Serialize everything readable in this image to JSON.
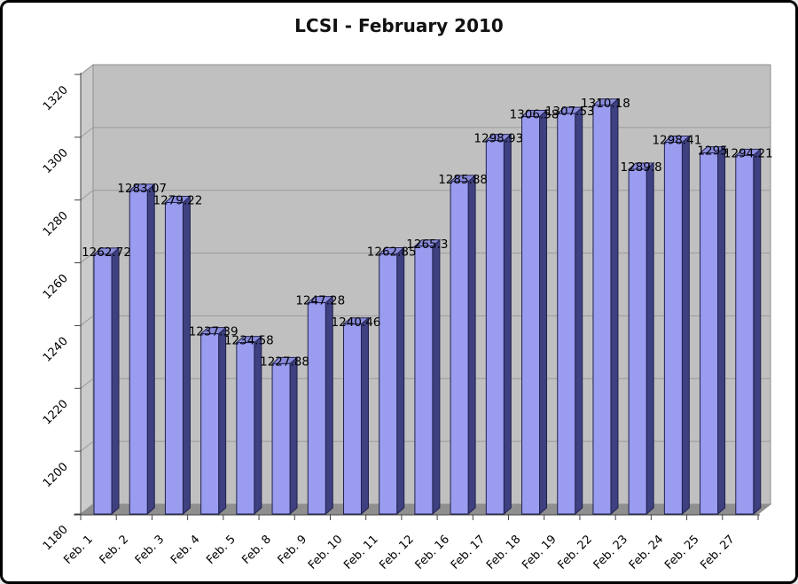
{
  "frame": {
    "background": "#ffffff",
    "border_color": "#000000"
  },
  "chart_data": {
    "type": "bar",
    "style": "3d-column-excel",
    "title": "LCSI - February 2010",
    "xlabel": "",
    "ylabel": "",
    "categories": [
      "Feb. 1",
      "Feb. 2",
      "Feb. 3",
      "Feb. 4",
      "Feb. 5",
      "Feb. 8",
      "Feb. 9",
      "Feb. 10",
      "Feb. 11",
      "Feb. 12",
      "Feb. 16",
      "Feb. 17",
      "Feb. 18",
      "Feb. 19",
      "Feb. 22",
      "Feb. 23",
      "Feb. 24",
      "Feb. 25",
      "Feb. 27"
    ],
    "values": [
      1262.72,
      1283.07,
      1279.22,
      1237.39,
      1234.58,
      1227.88,
      1247.28,
      1240.46,
      1262.85,
      1265.3,
      1285.88,
      1298.93,
      1306.58,
      1307.53,
      1310.18,
      1289.8,
      1298.41,
      1295,
      1294.21
    ],
    "value_labels": [
      "1262.72",
      "1283.07",
      "1279.22",
      "1237.39",
      "1234.58",
      "1227.88",
      "1247.28",
      "1240.46",
      "1262.85",
      "1265.3",
      "1285.88",
      "1298.93",
      "1306.58",
      "1307.53",
      "1310.18",
      "1289.8",
      "1298.41",
      "1295",
      "1294.21"
    ],
    "ylim": [
      1180,
      1320
    ],
    "ytick_interval": 20,
    "ytick_labels": [
      "1180",
      "1200",
      "1220",
      "1240",
      "1260",
      "1280",
      "1300",
      "1320"
    ],
    "grid": true,
    "legend": "none",
    "colors": {
      "bar_face": "#9a9cf0",
      "bar_side": "#3e4080",
      "bar_top": "#8a8cdc",
      "bar_edge": "#20214e",
      "wall": "#c0c0c0",
      "wall_side": "#cbcbcb",
      "floor": "#8f8f8f",
      "gridline": "#9a9a9a",
      "wall_border": "#8e8e8e",
      "axis": "#404040",
      "text": "#000000"
    }
  }
}
